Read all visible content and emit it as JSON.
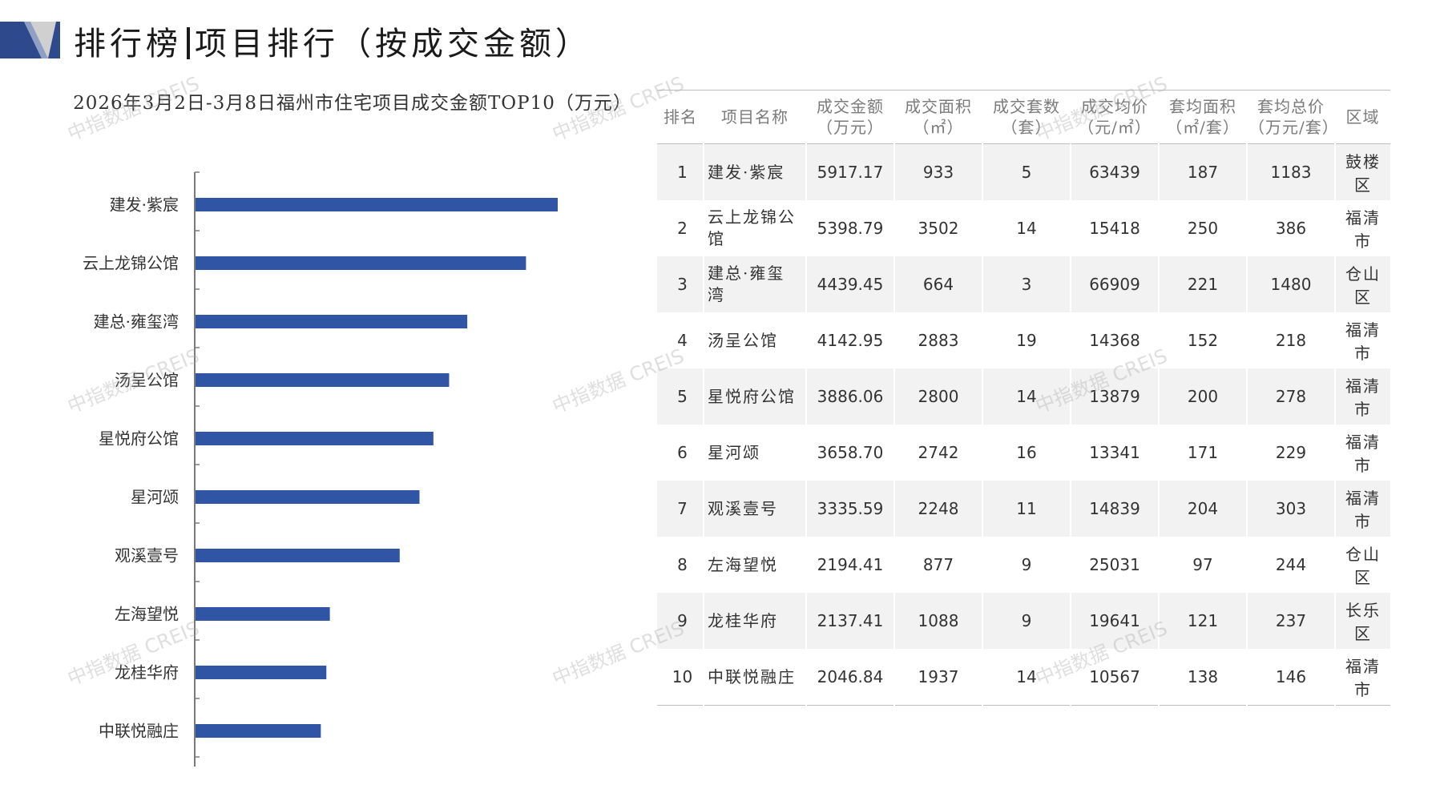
{
  "header": {
    "title_main": "排行榜",
    "title_sub": "项目排行（按成交金额）"
  },
  "chart_data": {
    "type": "bar",
    "orientation": "horizontal",
    "title": "2026年3月2日-3月8日福州市住宅项目成交金额TOP10（万元）",
    "categories": [
      "建发·紫宸",
      "云上龙锦公馆",
      "建总·雍玺湾",
      "汤呈公馆",
      "星悦府公馆",
      "星河颂",
      "观溪壹号",
      "左海望悦",
      "龙桂华府",
      "中联悦融庄"
    ],
    "values": [
      5917.17,
      5398.79,
      4439.45,
      4142.95,
      3886.06,
      3658.7,
      3335.59,
      2194.41,
      2137.41,
      2046.84
    ],
    "xlim": [
      0,
      6500
    ],
    "grid": false,
    "color": "#2f55a4"
  },
  "table": {
    "headers": [
      "排名",
      "项目名称",
      "成交金额\n（万元）",
      "成交面积\n（㎡）",
      "成交套数\n（套）",
      "成交均价\n（元/㎡）",
      "套均面积\n（㎡/套）",
      "套均总价\n（万元/套）",
      "区域"
    ],
    "rows": [
      [
        "1",
        "建发·紫宸",
        "5917.17",
        "933",
        "5",
        "63439",
        "187",
        "1183",
        "鼓楼区"
      ],
      [
        "2",
        "云上龙锦公馆",
        "5398.79",
        "3502",
        "14",
        "15418",
        "250",
        "386",
        "福清市"
      ],
      [
        "3",
        "建总·雍玺湾",
        "4439.45",
        "664",
        "3",
        "66909",
        "221",
        "1480",
        "仓山区"
      ],
      [
        "4",
        "汤呈公馆",
        "4142.95",
        "2883",
        "19",
        "14368",
        "152",
        "218",
        "福清市"
      ],
      [
        "5",
        "星悦府公馆",
        "3886.06",
        "2800",
        "14",
        "13879",
        "200",
        "278",
        "福清市"
      ],
      [
        "6",
        "星河颂",
        "3658.70",
        "2742",
        "16",
        "13341",
        "171",
        "229",
        "福清市"
      ],
      [
        "7",
        "观溪壹号",
        "3335.59",
        "2248",
        "11",
        "14839",
        "204",
        "303",
        "福清市"
      ],
      [
        "8",
        "左海望悦",
        "2194.41",
        "877",
        "9",
        "25031",
        "97",
        "244",
        "仓山区"
      ],
      [
        "9",
        "龙桂华府",
        "2137.41",
        "1088",
        "9",
        "19641",
        "121",
        "237",
        "长乐区"
      ],
      [
        "10",
        "中联悦融庄",
        "2046.84",
        "1937",
        "14",
        "10567",
        "138",
        "146",
        "福清市"
      ]
    ]
  },
  "watermark": {
    "text": "中指数据 CREIS"
  },
  "colors": {
    "bar": "#2f55a4",
    "logo_dark": "#2f4a8c",
    "logo_light": "#c9c9c9"
  }
}
